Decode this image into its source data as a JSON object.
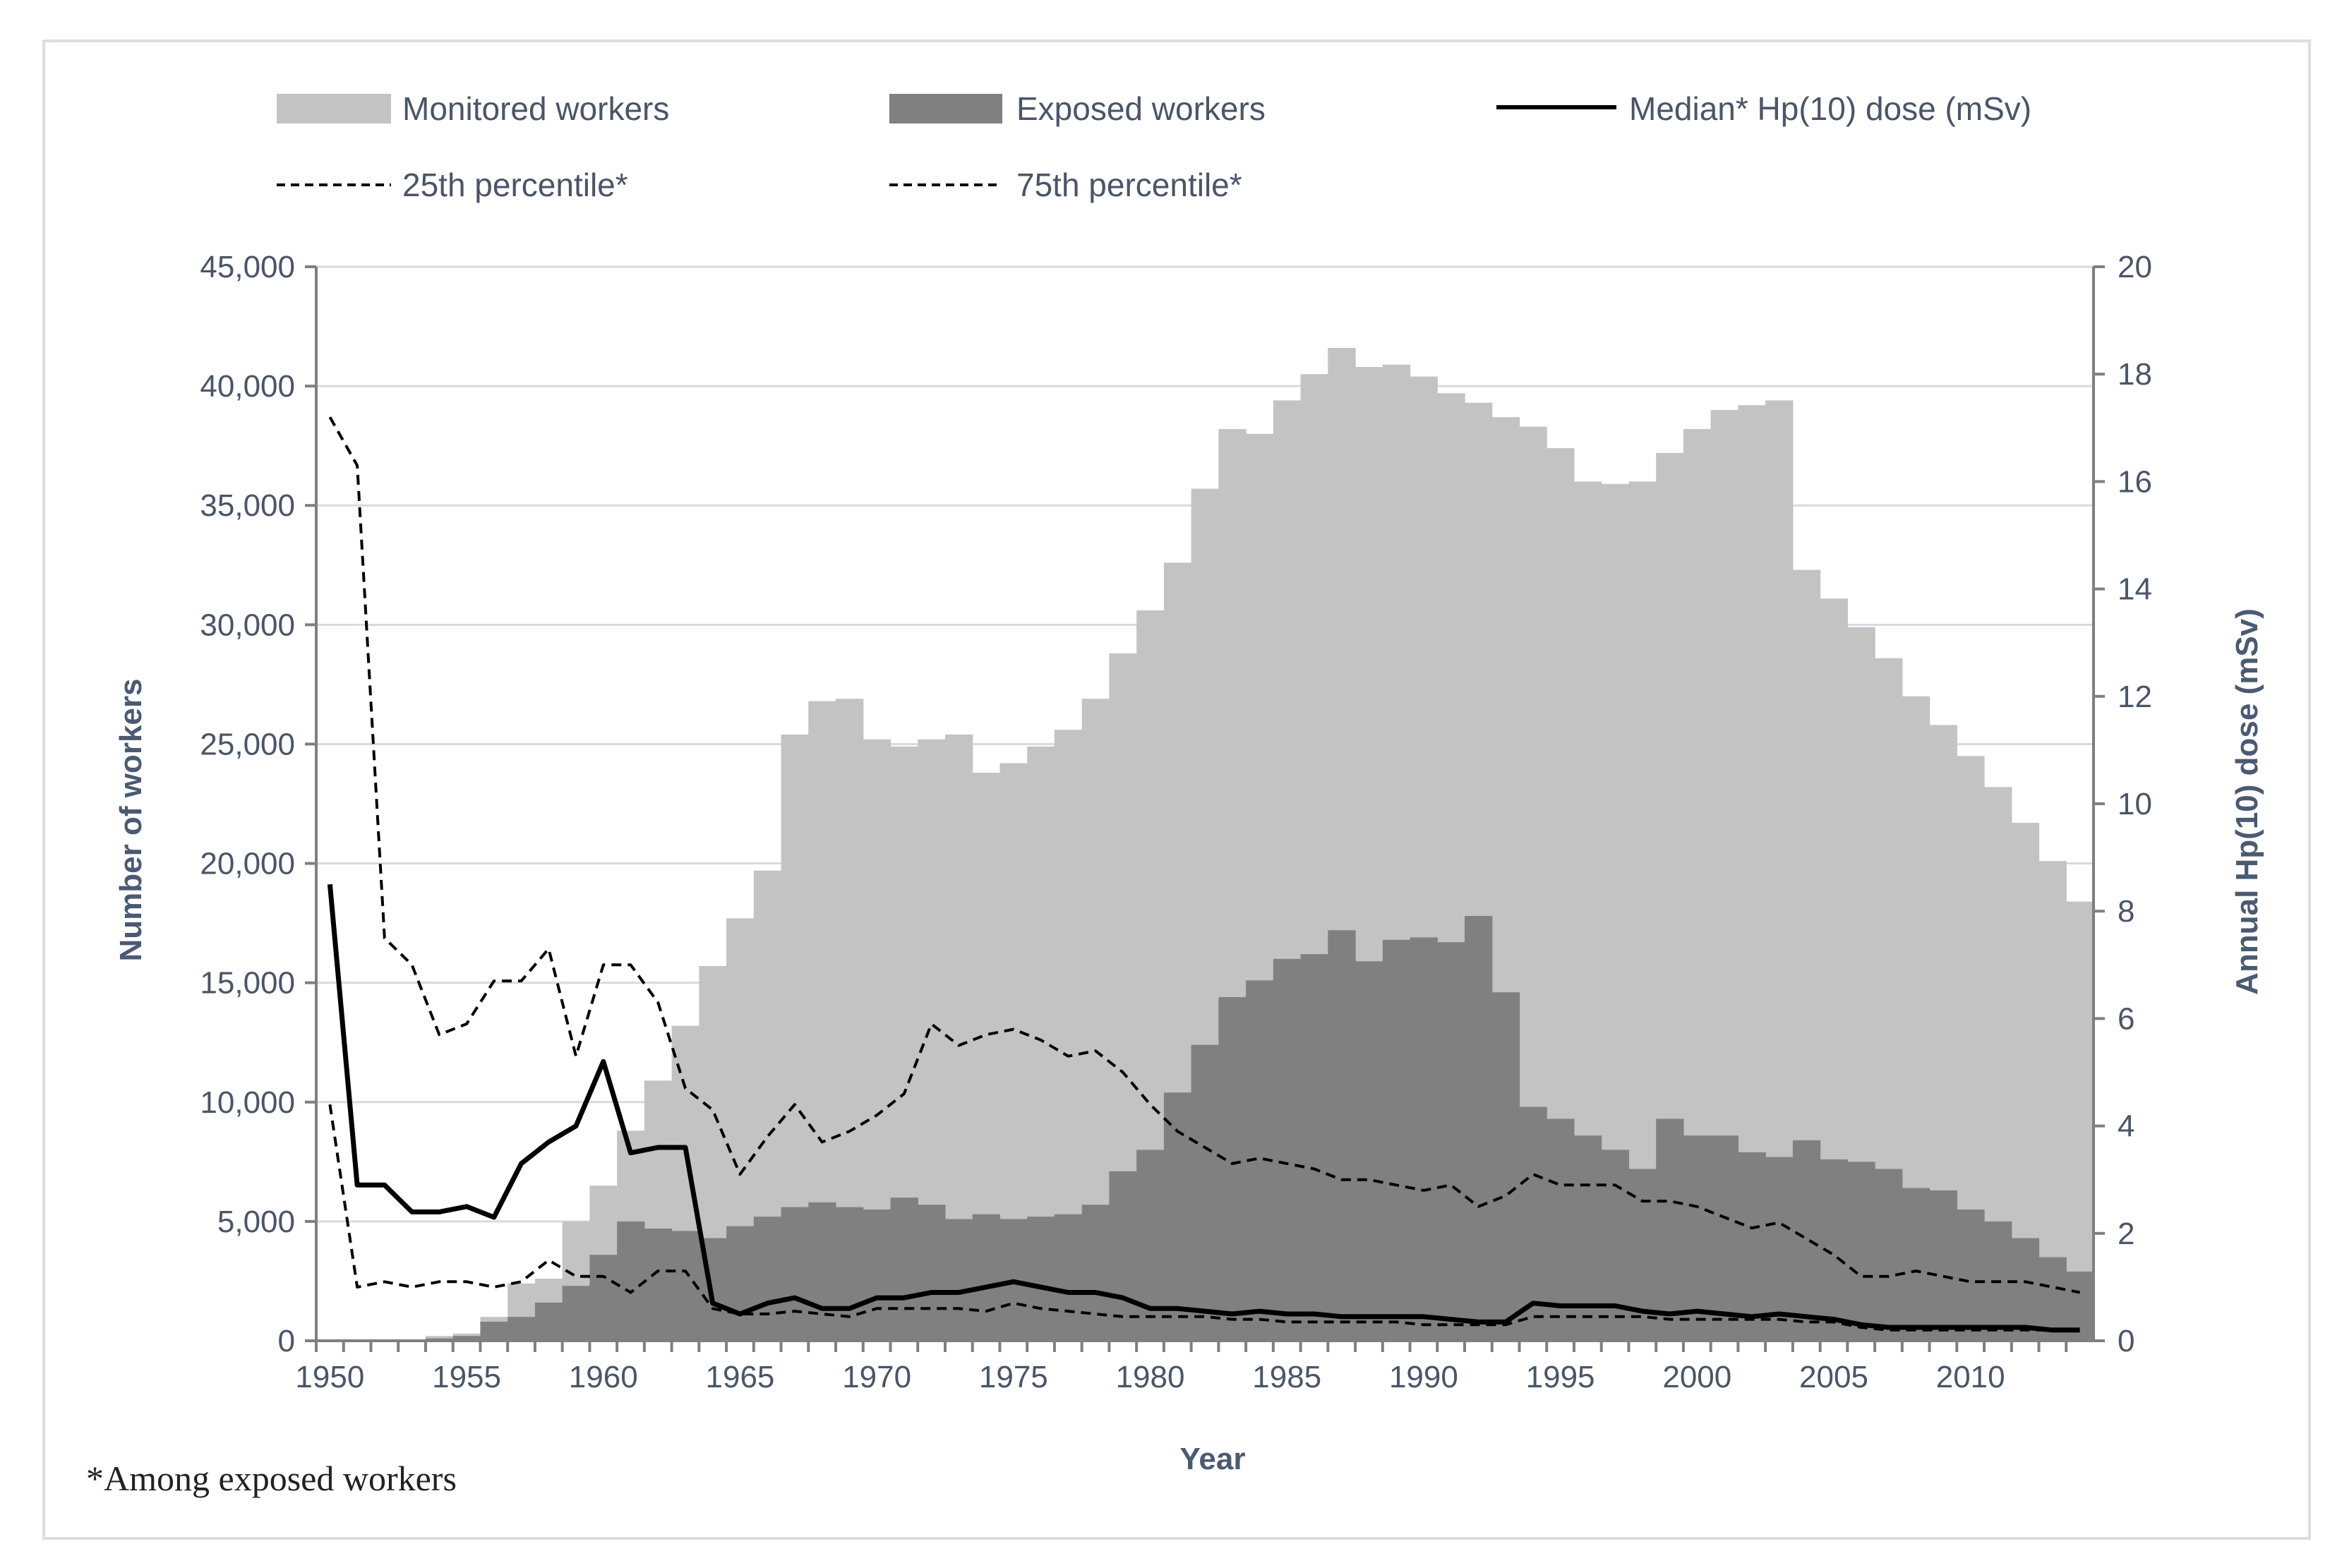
{
  "chart_data": {
    "type": "bar",
    "title": "",
    "xlabel": "Year",
    "ylabel": "Number of workers",
    "y2label": "Annual Hp(10) dose (mSv)",
    "ylim": [
      0,
      45000
    ],
    "y2lim": [
      0,
      20
    ],
    "yticks": [
      "0",
      "5,000",
      "10,000",
      "15,000",
      "20,000",
      "25,000",
      "30,000",
      "35,000",
      "40,000",
      "45,000"
    ],
    "y2ticks": [
      "0",
      "2",
      "4",
      "6",
      "8",
      "10",
      "12",
      "14",
      "16",
      "18",
      "20"
    ],
    "xticks": [
      "1950",
      "1955",
      "1960",
      "1965",
      "1970",
      "1975",
      "1980",
      "1985",
      "1990",
      "1995",
      "2000",
      "2005",
      "2010"
    ],
    "grid": true,
    "legend_position": "top",
    "footnote": "*Among exposed workers",
    "colors": {
      "monitored": "#c3c3c3",
      "exposed": "#808080",
      "median": "#000000",
      "percentile": "#000000"
    },
    "x": [
      1950,
      1951,
      1952,
      1953,
      1954,
      1955,
      1956,
      1957,
      1958,
      1959,
      1960,
      1961,
      1962,
      1963,
      1964,
      1965,
      1966,
      1967,
      1968,
      1969,
      1970,
      1971,
      1972,
      1973,
      1974,
      1975,
      1976,
      1977,
      1978,
      1979,
      1980,
      1981,
      1982,
      1983,
      1984,
      1985,
      1986,
      1987,
      1988,
      1989,
      1990,
      1991,
      1992,
      1993,
      1994,
      1995,
      1996,
      1997,
      1998,
      1999,
      2000,
      2001,
      2002,
      2003,
      2004,
      2005,
      2006,
      2007,
      2008,
      2009,
      2010,
      2011,
      2012,
      2013,
      2014
    ],
    "series": [
      {
        "name": "Monitored workers",
        "kind": "bar",
        "axis": "left",
        "values": [
          0,
          0,
          0,
          0,
          200,
          300,
          1000,
          2400,
          2600,
          5000,
          6500,
          8800,
          10900,
          13200,
          15700,
          17700,
          19700,
          25400,
          26800,
          26900,
          25200,
          24900,
          25200,
          25400,
          23800,
          24200,
          24900,
          25600,
          26900,
          28800,
          30600,
          32600,
          35700,
          38200,
          38000,
          39400,
          40500,
          41600,
          40800,
          40900,
          40400,
          39700,
          39300,
          38700,
          38300,
          37400,
          36000,
          35900,
          36000,
          37200,
          38200,
          39000,
          39200,
          39400,
          32300,
          31100,
          29900,
          28600,
          27000,
          25800,
          24500,
          23200,
          21700,
          20100,
          18400
        ]
      },
      {
        "name": "Exposed workers",
        "kind": "bar",
        "axis": "left",
        "values": [
          0,
          0,
          0,
          0,
          100,
          200,
          800,
          1000,
          1600,
          2300,
          3600,
          5000,
          4700,
          4600,
          4300,
          4800,
          5200,
          5600,
          5800,
          5600,
          5500,
          6000,
          5700,
          5100,
          5300,
          5100,
          5200,
          5300,
          5700,
          7100,
          8000,
          10400,
          12400,
          14400,
          15100,
          16000,
          16200,
          17200,
          15900,
          16800,
          16900,
          16700,
          17800,
          14600,
          9800,
          9300,
          8600,
          8000,
          7200,
          9300,
          8600,
          8600,
          7900,
          7700,
          8400,
          7600,
          7500,
          7200,
          6400,
          6300,
          5500,
          5000,
          4300,
          3500,
          2900
        ]
      },
      {
        "name": "Median* Hp(10) dose (mSv)",
        "kind": "line",
        "axis": "right",
        "values": [
          8.5,
          2.9,
          2.9,
          2.4,
          2.4,
          2.5,
          2.3,
          3.3,
          3.7,
          4.0,
          5.2,
          3.5,
          3.6,
          3.6,
          0.7,
          0.5,
          0.7,
          0.8,
          0.6,
          0.6,
          0.8,
          0.8,
          0.9,
          0.9,
          1.0,
          1.1,
          1.0,
          0.9,
          0.9,
          0.8,
          0.6,
          0.6,
          0.55,
          0.5,
          0.55,
          0.5,
          0.5,
          0.45,
          0.45,
          0.45,
          0.45,
          0.4,
          0.35,
          0.35,
          0.7,
          0.65,
          0.65,
          0.65,
          0.55,
          0.5,
          0.55,
          0.5,
          0.45,
          0.5,
          0.45,
          0.4,
          0.3,
          0.25,
          0.25,
          0.25,
          0.25,
          0.25,
          0.25,
          0.2,
          0.2
        ]
      },
      {
        "name": "25th percentile*",
        "kind": "line",
        "dashed": true,
        "axis": "right",
        "values": [
          4.4,
          1.0,
          1.1,
          1.0,
          1.1,
          1.1,
          1.0,
          1.1,
          1.5,
          1.2,
          1.2,
          0.9,
          1.3,
          1.3,
          0.6,
          0.5,
          0.5,
          0.55,
          0.5,
          0.45,
          0.6,
          0.6,
          0.6,
          0.6,
          0.55,
          0.7,
          0.6,
          0.55,
          0.5,
          0.45,
          0.45,
          0.45,
          0.45,
          0.4,
          0.4,
          0.35,
          0.35,
          0.35,
          0.35,
          0.35,
          0.3,
          0.3,
          0.3,
          0.3,
          0.45,
          0.45,
          0.45,
          0.45,
          0.45,
          0.4,
          0.4,
          0.4,
          0.4,
          0.4,
          0.35,
          0.35,
          0.25,
          0.2,
          0.2,
          0.2,
          0.2,
          0.2,
          0.2,
          0.2,
          0.2
        ]
      },
      {
        "name": "75th percentile*",
        "kind": "line",
        "dashed": true,
        "axis": "right",
        "values": [
          17.2,
          16.3,
          7.5,
          7.0,
          5.7,
          5.9,
          6.7,
          6.7,
          7.3,
          5.3,
          7.0,
          7.0,
          6.3,
          4.7,
          4.3,
          3.1,
          3.8,
          4.4,
          3.7,
          3.9,
          4.2,
          4.6,
          5.9,
          5.5,
          5.7,
          5.8,
          5.6,
          5.3,
          5.4,
          5.0,
          4.4,
          3.9,
          3.6,
          3.3,
          3.4,
          3.3,
          3.2,
          3.0,
          3.0,
          2.9,
          2.8,
          2.9,
          2.5,
          2.7,
          3.1,
          2.9,
          2.9,
          2.9,
          2.6,
          2.6,
          2.5,
          2.3,
          2.1,
          2.2,
          1.9,
          1.6,
          1.2,
          1.2,
          1.3,
          1.2,
          1.1,
          1.1,
          1.1,
          1.0,
          0.9
        ]
      }
    ]
  }
}
